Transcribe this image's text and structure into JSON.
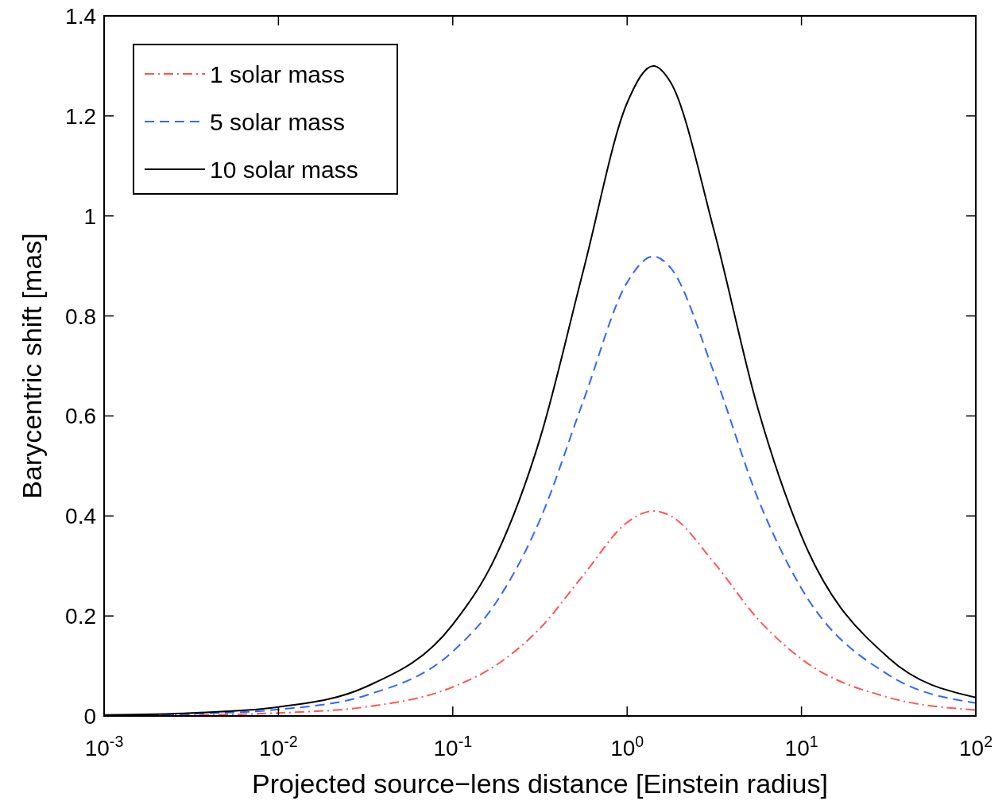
{
  "chart_data": {
    "type": "line",
    "xlabel": "Projected source−lens distance [Einstein radius]",
    "ylabel": "Barycentric shift [mas]",
    "log": "x",
    "xlim": [
      0.001,
      100
    ],
    "ylim": [
      0,
      1.4
    ],
    "xticks": [
      {
        "value": 0.001,
        "label": "10$^{-3}$"
      },
      {
        "value": 0.01,
        "label": "10$^{-2}$"
      },
      {
        "value": 0.1,
        "label": "10$^{-1}$"
      },
      {
        "value": 1,
        "label": "10$^{0}$"
      },
      {
        "value": 10,
        "label": "10$^{1}$"
      },
      {
        "value": 100,
        "label": "10$^{2}$"
      }
    ],
    "yticks": [
      0,
      0.2,
      0.4,
      0.6,
      0.8,
      1,
      1.2,
      1.4
    ],
    "grid": false,
    "legend": "top left",
    "series": [
      {
        "name": "1 solar mass",
        "color": "#ff5555",
        "line_style": "dashdot",
        "x": [
          0.001,
          0.00316,
          0.01,
          0.0316,
          0.1,
          0.178,
          0.316,
          0.562,
          1,
          1.413,
          1.778,
          3.162,
          5.623,
          10,
          31.62,
          100
        ],
        "values": [
          0.001,
          0.002,
          0.006,
          0.018,
          0.058,
          0.102,
          0.175,
          0.282,
          0.387,
          0.41,
          0.4,
          0.306,
          0.194,
          0.114,
          0.037,
          0.012
        ]
      },
      {
        "name": "5 solar mass",
        "color": "#3366ff",
        "line_style": "dashed",
        "x": [
          0.001,
          0.00316,
          0.01,
          0.0316,
          0.1,
          0.178,
          0.316,
          0.562,
          1,
          1.413,
          1.778,
          3.162,
          5.623,
          10,
          31.62,
          100
        ],
        "values": [
          0.001,
          0.004,
          0.013,
          0.041,
          0.129,
          0.228,
          0.392,
          0.631,
          0.867,
          0.919,
          0.896,
          0.685,
          0.435,
          0.255,
          0.082,
          0.026
        ]
      },
      {
        "name": "10 solar mass",
        "color": "#000000",
        "line_style": "solid",
        "x": [
          0.001,
          0.00316,
          0.01,
          0.0316,
          0.1,
          0.178,
          0.316,
          0.562,
          1,
          1.413,
          1.778,
          3.162,
          5.623,
          10,
          31.62,
          100
        ],
        "values": [
          0.002,
          0.006,
          0.018,
          0.058,
          0.183,
          0.322,
          0.554,
          0.892,
          1.226,
          1.3,
          1.267,
          0.969,
          0.615,
          0.36,
          0.116,
          0.037
        ]
      }
    ]
  }
}
